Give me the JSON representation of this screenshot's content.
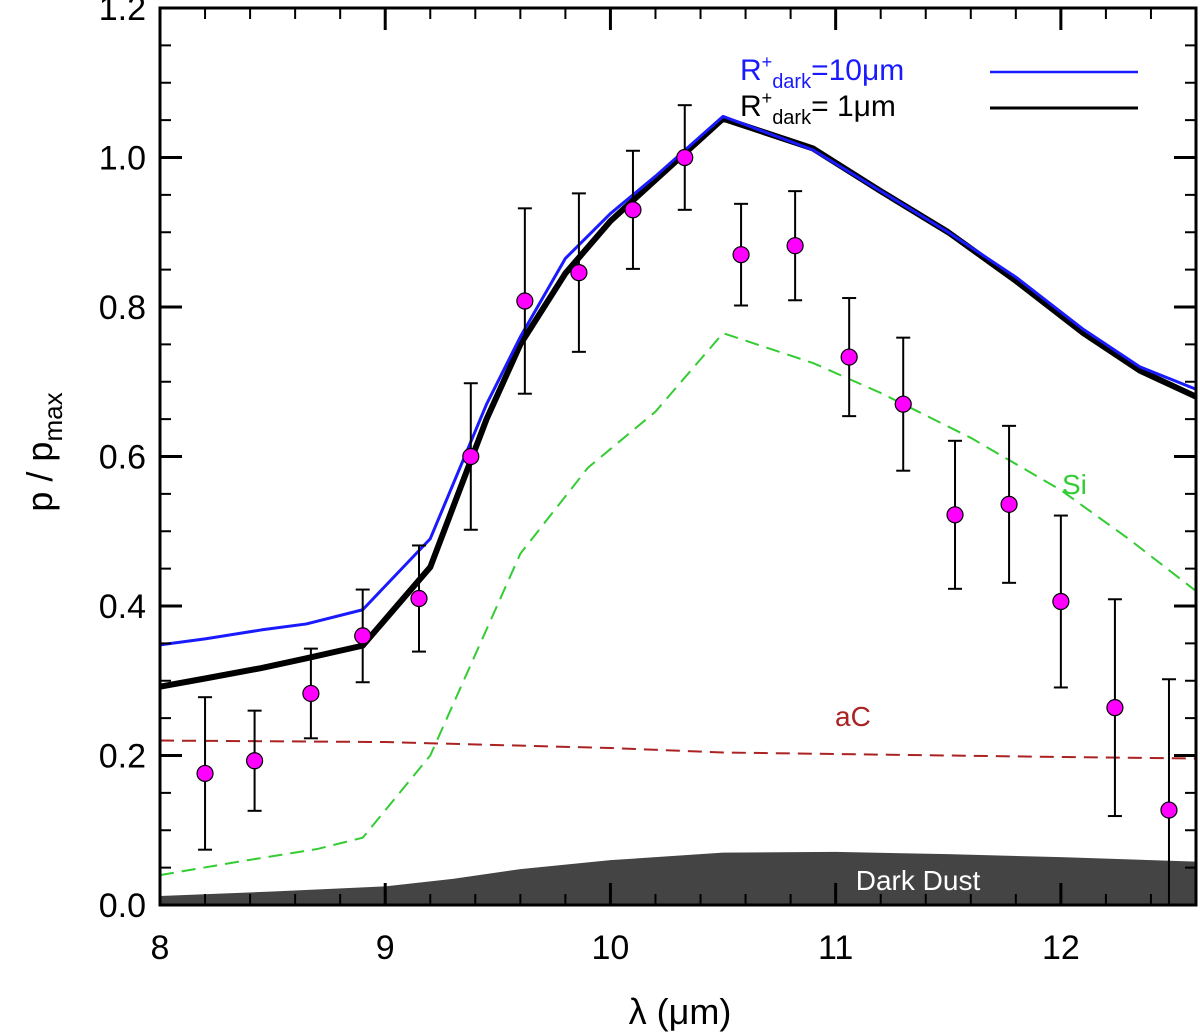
{
  "chart_data": {
    "type": "line",
    "xlabel": "λ (μm)",
    "ylabel": "p / pmax",
    "xlim": [
      8,
      12.6
    ],
    "ylim": [
      0,
      1.2
    ],
    "xticks": [
      8,
      9,
      10,
      11,
      12
    ],
    "yticks": [
      0.0,
      0.2,
      0.4,
      0.6,
      0.8,
      1.0,
      1.2
    ],
    "xtick_labels": [
      "8",
      "9",
      "10",
      "11",
      "12"
    ],
    "ytick_labels": [
      "0.0",
      "0.2",
      "0.4",
      "0.6",
      "0.8",
      "1.0",
      "1.2"
    ],
    "legend_position": "top-right",
    "series": [
      {
        "name": "R+dark=10μm",
        "legend_label": {
          "main": "R",
          "sup": "+",
          "sub": "dark",
          "rest": "=10μm"
        },
        "color": "#1a1aff",
        "style": "solid",
        "x": [
          8.0,
          8.2,
          8.45,
          8.65,
          8.9,
          9.2,
          9.45,
          9.6,
          9.8,
          10.0,
          10.2,
          10.5,
          10.9,
          11.2,
          11.5,
          11.8,
          12.1,
          12.35,
          12.6
        ],
        "y": [
          0.348,
          0.356,
          0.368,
          0.376,
          0.395,
          0.49,
          0.67,
          0.76,
          0.865,
          0.925,
          0.975,
          1.055,
          1.01,
          0.955,
          0.9,
          0.84,
          0.77,
          0.72,
          0.69
        ]
      },
      {
        "name": "R+dark= 1μm",
        "legend_label": {
          "main": "R",
          "sup": "+",
          "sub": "dark",
          "rest": "= 1μm"
        },
        "color": "#000000",
        "style": "solid-thick",
        "x": [
          8.0,
          8.2,
          8.45,
          8.65,
          8.9,
          9.2,
          9.45,
          9.6,
          9.8,
          10.0,
          10.2,
          10.5,
          10.9,
          11.2,
          11.5,
          11.8,
          12.1,
          12.35,
          12.6
        ],
        "y": [
          0.292,
          0.303,
          0.317,
          0.33,
          0.347,
          0.452,
          0.65,
          0.75,
          0.845,
          0.915,
          0.97,
          1.052,
          1.012,
          0.955,
          0.9,
          0.835,
          0.765,
          0.715,
          0.68
        ]
      },
      {
        "name": "Si",
        "color": "#33cc33",
        "style": "dashed",
        "x": [
          8.0,
          8.35,
          8.7,
          8.9,
          9.2,
          9.6,
          9.9,
          10.2,
          10.5,
          10.9,
          11.2,
          11.6,
          12.0,
          12.3,
          12.6
        ],
        "y": [
          0.04,
          0.058,
          0.075,
          0.09,
          0.2,
          0.47,
          0.585,
          0.66,
          0.765,
          0.725,
          0.685,
          0.625,
          0.555,
          0.49,
          0.42
        ]
      },
      {
        "name": "aC",
        "color": "#aa2222",
        "style": "dashed",
        "x": [
          8.0,
          9.0,
          10.0,
          10.5,
          11.0,
          12.0,
          12.6
        ],
        "y": [
          0.22,
          0.218,
          0.21,
          0.204,
          0.202,
          0.198,
          0.196
        ]
      },
      {
        "name": "Dark Dust",
        "color": "#444444",
        "style": "filled-area",
        "x": [
          8.0,
          8.5,
          9.0,
          9.3,
          9.6,
          10.0,
          10.5,
          11.0,
          11.5,
          12.0,
          12.6
        ],
        "y": [
          0.012,
          0.018,
          0.025,
          0.035,
          0.048,
          0.06,
          0.07,
          0.071,
          0.068,
          0.064,
          0.058
        ]
      }
    ],
    "observations": {
      "marker_color": "#ff00ff",
      "errorbar_color": "#000000",
      "x": [
        8.2,
        8.42,
        8.67,
        8.9,
        9.15,
        9.38,
        9.62,
        9.86,
        10.1,
        10.33,
        10.58,
        10.82,
        11.06,
        11.3,
        11.53,
        11.77,
        12.0,
        12.24,
        12.48
      ],
      "y": [
        0.176,
        0.193,
        0.283,
        0.36,
        0.41,
        0.6,
        0.808,
        0.846,
        0.93,
        1.0,
        0.87,
        0.882,
        0.733,
        0.67,
        0.522,
        0.536,
        0.406,
        0.264,
        0.127
      ],
      "err": [
        0.102,
        0.067,
        0.06,
        0.062,
        0.071,
        0.098,
        0.124,
        0.106,
        0.079,
        0.07,
        0.068,
        0.073,
        0.079,
        0.089,
        0.099,
        0.105,
        0.115,
        0.145,
        0.175
      ]
    },
    "annotations": {
      "si_label": "Si",
      "ac_label": "aC",
      "dark_dust_label": "Dark Dust"
    }
  }
}
